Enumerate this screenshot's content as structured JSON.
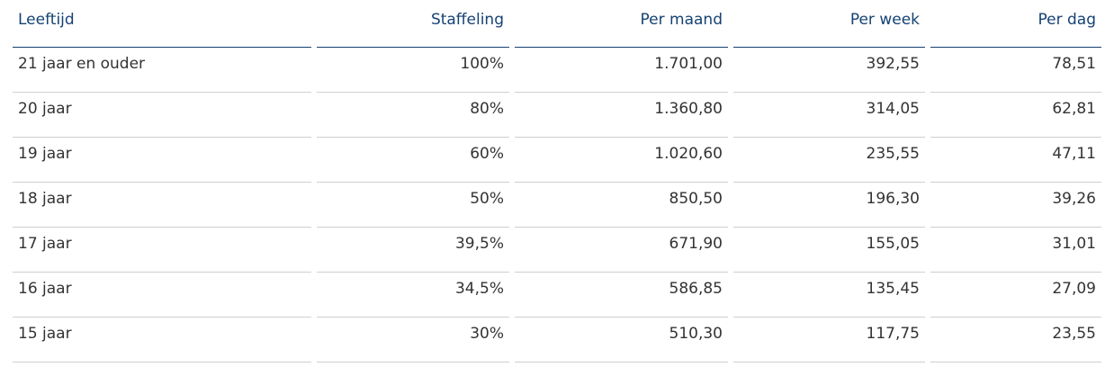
{
  "table": {
    "headers": [
      "Leeftijd",
      "Staffeling",
      "Per maand",
      "Per week",
      "Per dag"
    ],
    "rows": [
      [
        "21 jaar en ouder",
        "100%",
        "1.701,00",
        "392,55",
        "78,51"
      ],
      [
        "20 jaar",
        "80%",
        "1.360,80",
        "314,05",
        "62,81"
      ],
      [
        "19 jaar",
        "60%",
        "1.020,60",
        "235,55",
        "47,11"
      ],
      [
        "18 jaar",
        "50%",
        "850,50",
        "196,30",
        "39,26"
      ],
      [
        "17 jaar",
        "39,5%",
        "671,90",
        "155,05",
        "31,01"
      ],
      [
        "16 jaar",
        "34,5%",
        "586,85",
        "135,45",
        "27,09"
      ],
      [
        "15 jaar",
        "30%",
        "510,30",
        "117,75",
        "23,55"
      ]
    ]
  },
  "colors": {
    "header_text": "#154273",
    "header_rule": "#154273",
    "body_text": "#333333",
    "row_rule": "#cfcfcf"
  }
}
